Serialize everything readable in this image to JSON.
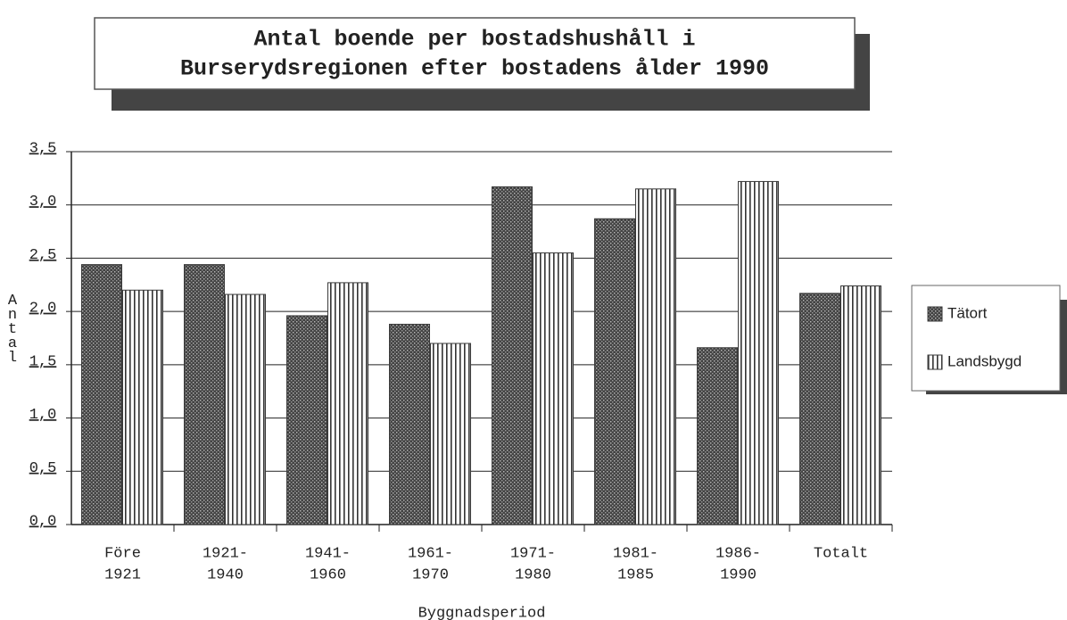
{
  "chart_data": {
    "type": "bar",
    "title": [
      "Antal boende per bostadshushåll i",
      "Burserydsregionen efter bostadens ålder 1990"
    ],
    "xlabel": "Byggnadsperiod",
    "ylabel": "Antal",
    "categories": [
      [
        "Före",
        "1921"
      ],
      [
        "1921-",
        "1940"
      ],
      [
        "1941-",
        "1960"
      ],
      [
        "1961-",
        "1970"
      ],
      [
        "1971-",
        "1980"
      ],
      [
        "1981-",
        "1985"
      ],
      [
        "1986-",
        "1990"
      ],
      [
        "Totalt"
      ]
    ],
    "series": [
      {
        "name": "Tätort",
        "color": "#3a3a3a",
        "pattern": "dots",
        "values": [
          2.44,
          2.44,
          1.96,
          1.88,
          3.17,
          2.87,
          1.66,
          2.17
        ]
      },
      {
        "name": "Landsbygd",
        "color": "#3a3a3a",
        "pattern": "vertical-stripes",
        "values": [
          2.2,
          2.16,
          2.27,
          1.7,
          2.55,
          3.15,
          3.22,
          2.24
        ]
      }
    ],
    "ylim": [
      0,
      3.5
    ],
    "yticks": [
      {
        "value": 0,
        "label": "0,0"
      },
      {
        "value": 0.5,
        "label": "0,5"
      },
      {
        "value": 1,
        "label": "1,0"
      },
      {
        "value": 1.5,
        "label": "1,5"
      },
      {
        "value": 2,
        "label": "2,0"
      },
      {
        "value": 2.5,
        "label": "2,5"
      },
      {
        "value": 3,
        "label": "3,0"
      },
      {
        "value": 3.5,
        "label": "3,5"
      }
    ],
    "grid": true,
    "legend": "right"
  }
}
